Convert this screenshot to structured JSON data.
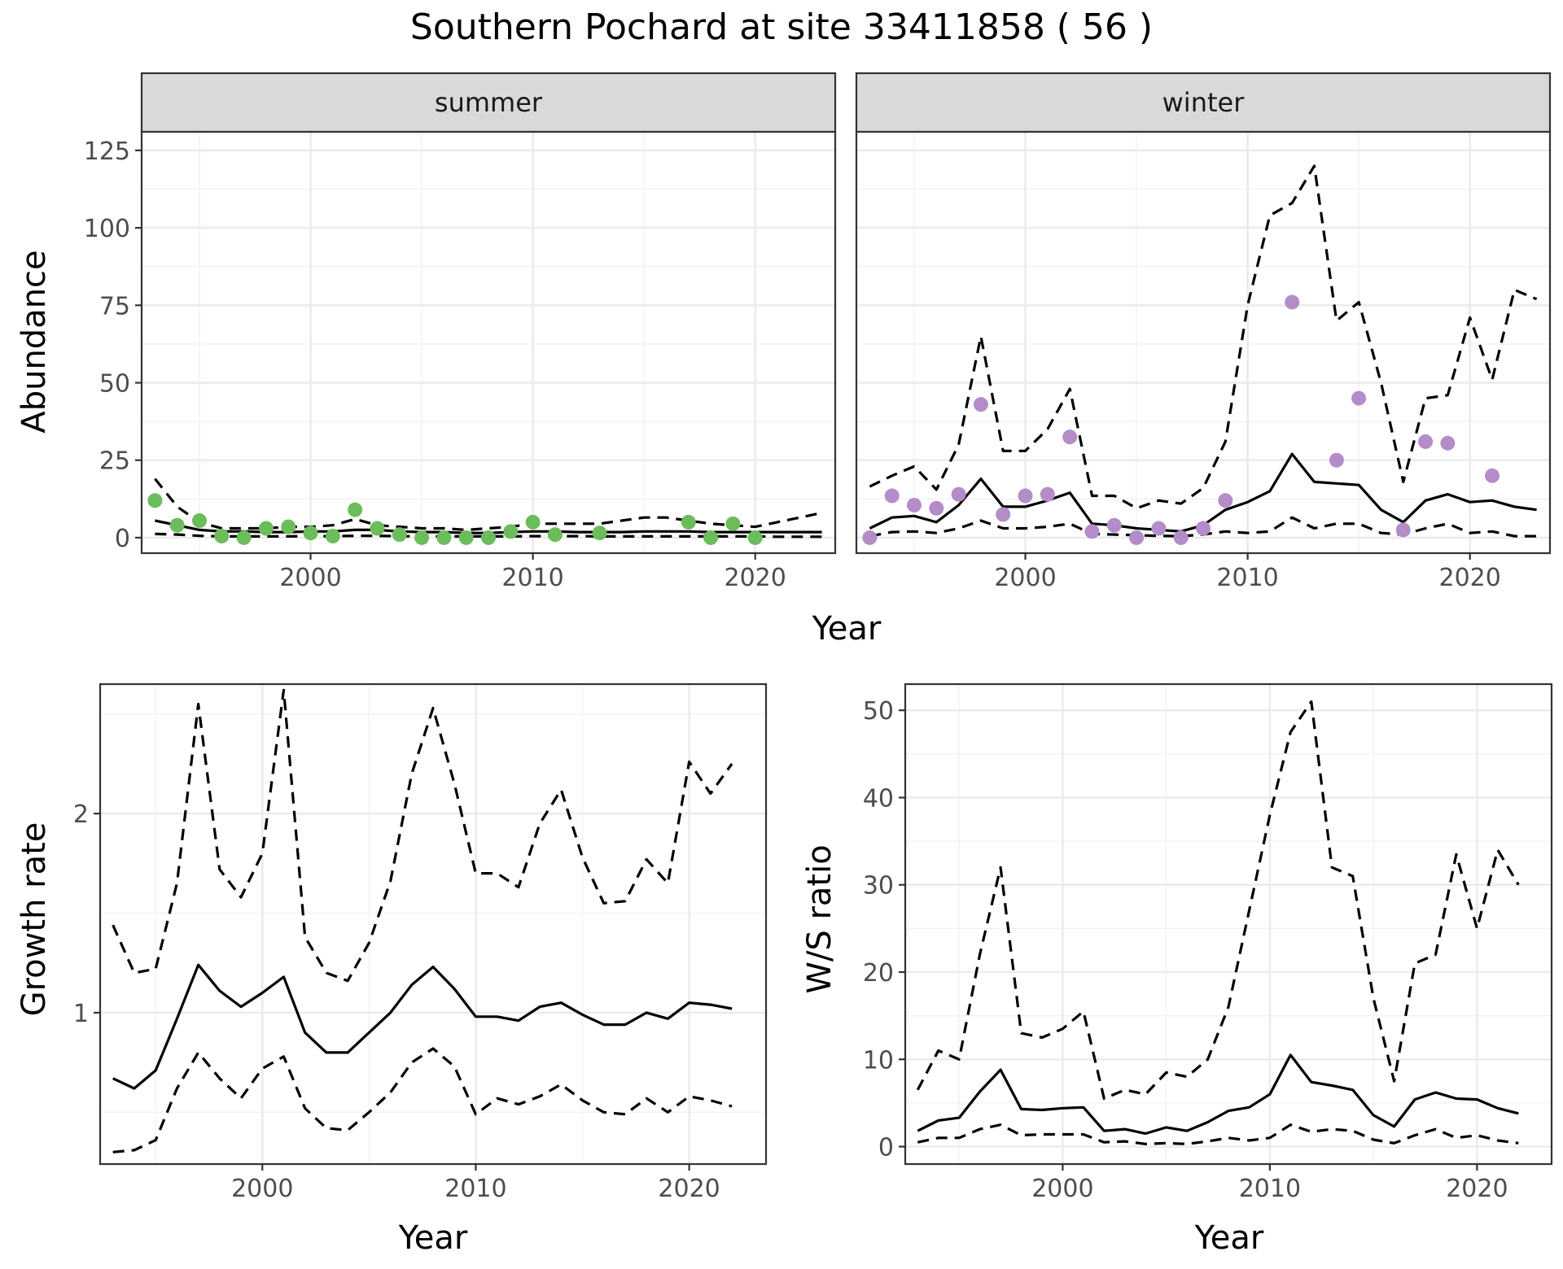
{
  "title": "Southern Pochard at site 33411858 ( 56 )",
  "colors": {
    "summer_points": "#6bbd5b",
    "winter_points": "#b48cc8",
    "strip_fill": "#d9d9d9",
    "lines": "#000000"
  },
  "chart_data": [
    {
      "id": "abundance",
      "type": "line",
      "ylabel": "Abundance",
      "xlabel": "Year",
      "facets": [
        "summer",
        "winter"
      ],
      "xlim": [
        1992.4,
        2023.6
      ],
      "ylim": [
        -5,
        131
      ],
      "xticks": [
        2000,
        2010,
        2020
      ],
      "yticks": [
        0,
        25,
        50,
        75,
        100,
        125
      ],
      "panels": [
        {
          "label": "summer",
          "x": [
            1993,
            1994,
            1995,
            1996,
            1997,
            1998,
            1999,
            2000,
            2001,
            2002,
            2003,
            2004,
            2005,
            2006,
            2007,
            2008,
            2009,
            2010,
            2011,
            2012,
            2013,
            2014,
            2015,
            2016,
            2017,
            2018,
            2019,
            2020,
            2021,
            2022,
            2023
          ],
          "mean": [
            5.5,
            4,
            2.5,
            2,
            2,
            1.8,
            1.8,
            2,
            2,
            2.5,
            2.5,
            2,
            1.8,
            1.8,
            1.5,
            1.5,
            1.8,
            2,
            2,
            1.8,
            1.8,
            1.8,
            2,
            2,
            2,
            1.8,
            1.8,
            1.8,
            1.8,
            1.8,
            1.8
          ],
          "upper": [
            19,
            10,
            5,
            3,
            3,
            3,
            3.5,
            3.5,
            4,
            6,
            4,
            3.5,
            3,
            3,
            2.5,
            3,
            3.5,
            4.5,
            4.5,
            4.5,
            4.5,
            5.5,
            6.5,
            6.5,
            5.5,
            4.5,
            4,
            3.5,
            5,
            6.5,
            8
          ],
          "lower": [
            1.2,
            1,
            0.6,
            0.4,
            0.4,
            0.4,
            0.4,
            0.5,
            0.5,
            0.6,
            0.6,
            0.5,
            0.4,
            0.4,
            0.4,
            0.4,
            0.4,
            0.5,
            0.5,
            0.5,
            0.4,
            0.4,
            0.4,
            0.4,
            0.4,
            0.4,
            0.4,
            0.4,
            0.3,
            0.3,
            0.3
          ],
          "points": [
            [
              1993,
              12
            ],
            [
              1994,
              4
            ],
            [
              1995,
              5.5
            ],
            [
              1996,
              0.5
            ],
            [
              1997,
              0
            ],
            [
              1998,
              3
            ],
            [
              1999,
              3.5
            ],
            [
              2000,
              1.5
            ],
            [
              2001,
              0.5
            ],
            [
              2002,
              9
            ],
            [
              2003,
              3
            ],
            [
              2004,
              1
            ],
            [
              2005,
              0
            ],
            [
              2006,
              0
            ],
            [
              2007,
              0
            ],
            [
              2008,
              0
            ],
            [
              2009,
              2
            ],
            [
              2010,
              5
            ],
            [
              2011,
              1
            ],
            [
              2013,
              1.5
            ],
            [
              2017,
              5
            ],
            [
              2018,
              0
            ],
            [
              2019,
              4.5
            ],
            [
              2020,
              0
            ]
          ]
        },
        {
          "label": "winter",
          "x": [
            1993,
            1994,
            1995,
            1996,
            1997,
            1998,
            1999,
            2000,
            2001,
            2002,
            2003,
            2004,
            2005,
            2006,
            2007,
            2008,
            2009,
            2010,
            2011,
            2012,
            2013,
            2014,
            2015,
            2016,
            2017,
            2018,
            2019,
            2020,
            2021,
            2022,
            2023
          ],
          "mean": [
            3,
            6.5,
            7,
            5,
            10.5,
            19,
            10,
            10,
            12,
            14.5,
            4.5,
            4,
            3,
            2.5,
            2,
            4,
            9,
            11.5,
            15,
            27,
            18,
            17.5,
            17,
            9,
            5,
            12,
            14,
            11.5,
            12,
            10,
            9
          ],
          "upper": [
            16.5,
            20,
            23,
            15.5,
            30,
            65,
            28,
            28,
            35,
            48,
            13.5,
            13.5,
            9.5,
            12,
            11,
            16,
            31,
            75,
            104,
            108,
            120,
            70,
            76,
            50,
            18,
            45,
            46,
            71,
            51,
            80,
            77
          ],
          "lower": [
            0.5,
            1.8,
            2,
            1.5,
            3,
            5.5,
            3,
            3,
            3.5,
            4.5,
            1.2,
            1,
            0.8,
            0.6,
            0.5,
            1,
            2,
            1.5,
            2,
            6.5,
            3,
            4.5,
            4.5,
            1.5,
            1,
            3,
            4.5,
            1.5,
            2,
            0.5,
            0.5
          ],
          "points": [
            [
              1993,
              0
            ],
            [
              1994,
              13.5
            ],
            [
              1995,
              10.5
            ],
            [
              1996,
              9.5
            ],
            [
              1997,
              14
            ],
            [
              1998,
              43
            ],
            [
              1999,
              7.5
            ],
            [
              2000,
              13.5
            ],
            [
              2001,
              14
            ],
            [
              2002,
              32.5
            ],
            [
              2003,
              2
            ],
            [
              2004,
              4
            ],
            [
              2005,
              0
            ],
            [
              2006,
              3
            ],
            [
              2007,
              0
            ],
            [
              2008,
              3
            ],
            [
              2009,
              12
            ],
            [
              2012,
              76
            ],
            [
              2014,
              25
            ],
            [
              2015,
              45
            ],
            [
              2017,
              2.5
            ],
            [
              2018,
              31
            ],
            [
              2019,
              30.5
            ],
            [
              2021,
              20
            ]
          ]
        }
      ]
    },
    {
      "id": "growth",
      "type": "line",
      "ylabel": "Growth rate",
      "xlabel": "Year",
      "xlim": [
        1992.4,
        2023.6
      ],
      "ylim": [
        0.24,
        2.65
      ],
      "xticks": [
        2000,
        2010,
        2020
      ],
      "yticks": [
        1,
        2
      ],
      "x": [
        1993,
        1994,
        1995,
        1996,
        1997,
        1998,
        1999,
        2000,
        2001,
        2002,
        2003,
        2004,
        2005,
        2006,
        2007,
        2008,
        2009,
        2010,
        2011,
        2012,
        2013,
        2014,
        2015,
        2016,
        2017,
        2018,
        2019,
        2020,
        2021,
        2022
      ],
      "mean": [
        0.67,
        0.62,
        0.71,
        0.97,
        1.24,
        1.11,
        1.03,
        1.1,
        1.18,
        0.9,
        0.8,
        0.8,
        0.9,
        1,
        1.14,
        1.23,
        1.12,
        0.98,
        0.98,
        0.96,
        1.03,
        1.05,
        0.99,
        0.94,
        0.94,
        1,
        0.97,
        1.05,
        1.04,
        1.02
      ],
      "upper": [
        1.44,
        1.2,
        1.22,
        1.65,
        2.55,
        1.72,
        1.58,
        1.8,
        2.62,
        1.38,
        1.2,
        1.16,
        1.35,
        1.66,
        2.2,
        2.53,
        2.15,
        1.7,
        1.7,
        1.63,
        1.95,
        2.12,
        1.78,
        1.55,
        1.56,
        1.77,
        1.65,
        2.26,
        2.1,
        2.25
      ],
      "lower": [
        0.3,
        0.31,
        0.36,
        0.62,
        0.8,
        0.67,
        0.57,
        0.72,
        0.78,
        0.52,
        0.42,
        0.41,
        0.5,
        0.6,
        0.75,
        0.82,
        0.73,
        0.49,
        0.57,
        0.54,
        0.58,
        0.64,
        0.56,
        0.5,
        0.49,
        0.57,
        0.5,
        0.58,
        0.56,
        0.53
      ]
    },
    {
      "id": "ws_ratio",
      "type": "line",
      "ylabel": "W/S ratio",
      "xlabel": "Year",
      "xlim": [
        1992.4,
        2023.6
      ],
      "ylim": [
        -2,
        53
      ],
      "xticks": [
        2000,
        2010,
        2020
      ],
      "yticks": [
        0,
        10,
        20,
        30,
        40,
        50
      ],
      "x": [
        1993,
        1994,
        1995,
        1996,
        1997,
        1998,
        1999,
        2000,
        2001,
        2002,
        2003,
        2004,
        2005,
        2006,
        2007,
        2008,
        2009,
        2010,
        2011,
        2012,
        2013,
        2014,
        2015,
        2016,
        2017,
        2018,
        2019,
        2020,
        2021,
        2022
      ],
      "mean": [
        1.8,
        3,
        3.3,
        6.3,
        8.8,
        4.3,
        4.2,
        4.4,
        4.5,
        1.8,
        2,
        1.5,
        2.2,
        1.8,
        2.8,
        4.1,
        4.5,
        6,
        10.5,
        7.4,
        7,
        6.5,
        3.6,
        2.3,
        5.4,
        6.2,
        5.5,
        5.4,
        4.4,
        3.8
      ],
      "upper": [
        6.5,
        11,
        10,
        22,
        32,
        13,
        12.5,
        13.5,
        15.5,
        5.5,
        6.5,
        6,
        8.5,
        8,
        10,
        16,
        27,
        38,
        47.5,
        51,
        32,
        31,
        17,
        7.5,
        21,
        22,
        33.5,
        25,
        34,
        30
      ],
      "lower": [
        0.5,
        1,
        1,
        2,
        2.5,
        1.3,
        1.4,
        1.4,
        1.4,
        0.5,
        0.6,
        0.3,
        0.4,
        0.3,
        0.6,
        1,
        0.7,
        1,
        2.5,
        1.7,
        2,
        1.8,
        0.8,
        0.4,
        1.3,
        2,
        1,
        1.3,
        0.7,
        0.4
      ]
    }
  ]
}
